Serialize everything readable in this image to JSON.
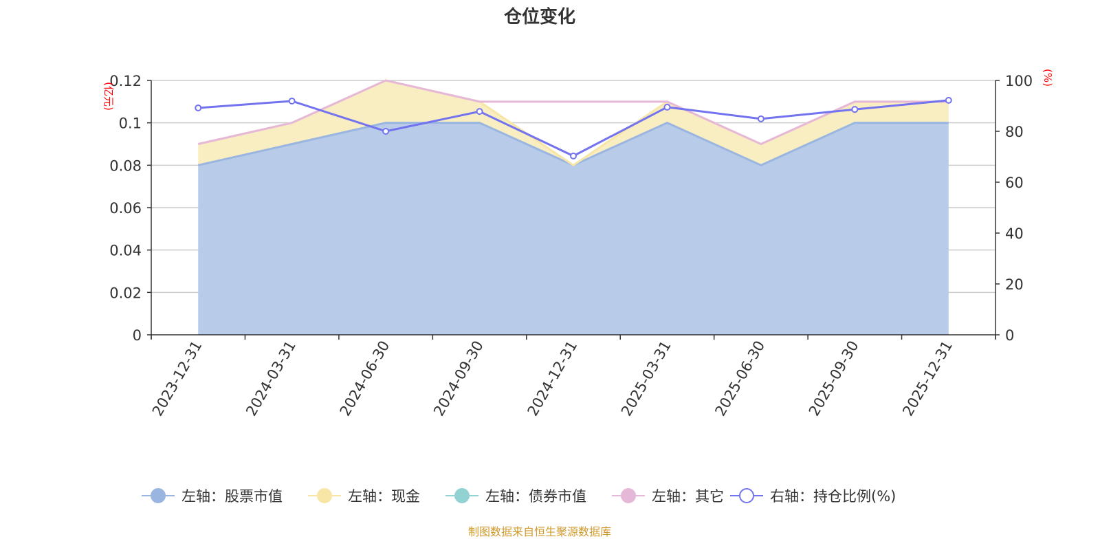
{
  "chart_data": {
    "type": "area",
    "title": "仓位变化",
    "categories": [
      "2023-12-31",
      "2024-03-31",
      "2024-06-30",
      "2024-09-30",
      "2024-12-31",
      "2025-03-31",
      "2025-06-30",
      "2025-09-30",
      "2025-12-31"
    ],
    "left_axis": {
      "unit_label": "(亿元)",
      "range": [
        0,
        0.12
      ],
      "ticks": [
        "0",
        "0.02",
        "0.04",
        "0.06",
        "0.08",
        "0.1",
        "0.12"
      ],
      "tick_values": [
        0,
        0.02,
        0.04,
        0.06,
        0.08,
        0.1,
        0.12
      ]
    },
    "right_axis": {
      "unit_label": "(%)",
      "range": [
        0,
        100
      ],
      "ticks": [
        "0",
        "20",
        "40",
        "60",
        "80",
        "100"
      ],
      "tick_values": [
        0,
        20,
        40,
        60,
        80,
        100
      ]
    },
    "stacked_series": [
      {
        "name": "左轴：股票市值",
        "color": "#9ab6e0",
        "fill": "#b8cbe9",
        "values": [
          0.08,
          0.09,
          0.1,
          0.1,
          0.08,
          0.1,
          0.08,
          0.1,
          0.1
        ]
      },
      {
        "name": "左轴：现金",
        "color": "#f7e6a6",
        "fill": "#f9edc2",
        "values": [
          0.01,
          0.01,
          0.02,
          0.01,
          0.0,
          0.01,
          0.01,
          0.01,
          0.01
        ]
      },
      {
        "name": "左轴：债券市值",
        "color": "#93d2d2",
        "fill": "none",
        "values": [
          0,
          0,
          0,
          0,
          0,
          0,
          0,
          0,
          0
        ]
      },
      {
        "name": "左轴：其它",
        "color": "#e6b8d8",
        "fill": "none",
        "values": [
          0,
          0,
          0,
          0,
          0.03,
          0,
          0,
          0,
          0
        ]
      }
    ],
    "line_series": {
      "name": "右轴：持仓比例(%)",
      "color": "#7373f0",
      "values": [
        89.2,
        91.9,
        80.0,
        87.8,
        70.3,
        89.5,
        84.9,
        88.6,
        92.2
      ]
    },
    "grid": true,
    "legend_position": "bottom"
  },
  "footer": "制图数据来自恒生聚源数据库"
}
